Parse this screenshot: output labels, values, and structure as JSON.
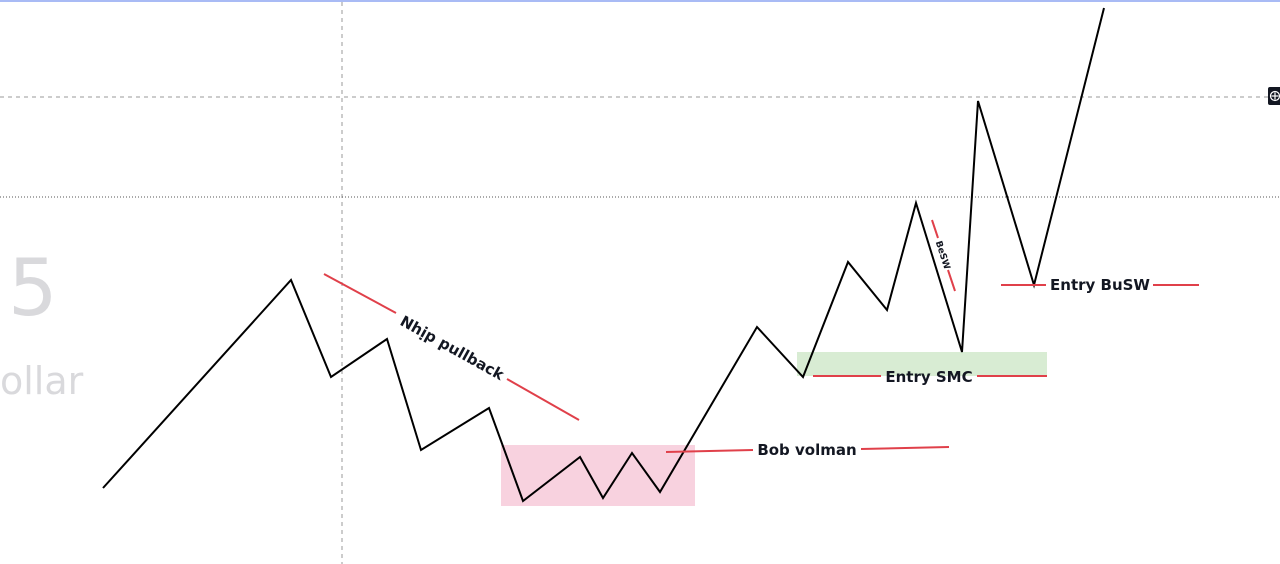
{
  "watermark": {
    "number": "5",
    "text": "ollar"
  },
  "labels": {
    "nhip_pullback": "Nhịp pullback",
    "bob_volman": "Bob volman",
    "entry_smc": "Entry SMC",
    "entry_busw": "Entry BuSW",
    "besw": "BeSW"
  },
  "icons": {
    "crosshair": "crosshair-icon"
  },
  "colors": {
    "top_border": "#a9bbf5",
    "price_line": "#000000",
    "annotation_line": "#e0404a",
    "range_box": "#f8d2df",
    "smc_zone": "#d8ecd3",
    "grid_dash": "#9a9a9a",
    "watermark": "#d9d9dc"
  }
}
